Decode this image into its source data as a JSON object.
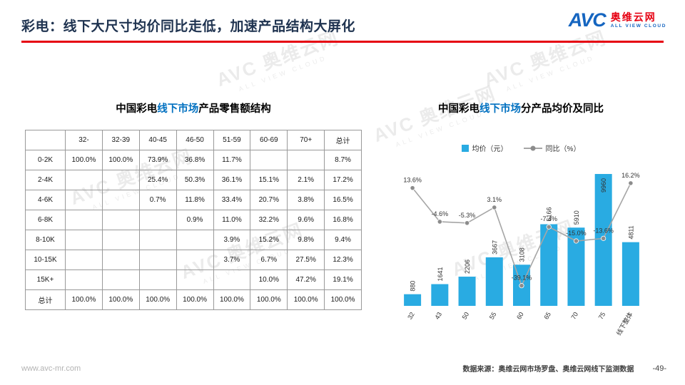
{
  "header": {
    "title": "彩电：线下大尺寸均价同比走低，加速产品结构大屏化",
    "logo": {
      "abbr": "AVC",
      "cn": "奥维云网",
      "en": "ALL VIEW CLOUD"
    }
  },
  "watermark": {
    "abbr": "AVC",
    "cn": "奥维云网",
    "en": "ALL VIEW CLOUD"
  },
  "table_section": {
    "title": {
      "pre": "中国彩电",
      "highlight": "线下市场",
      "post": "产品零售额结构"
    },
    "columns": [
      "",
      "32-",
      "32-39",
      "40-45",
      "46-50",
      "51-59",
      "60-69",
      "70+",
      "总计"
    ],
    "rows": [
      {
        "label": "0-2K",
        "cells": [
          "100.0%",
          "100.0%",
          "73.9%",
          "36.8%",
          "11.7%",
          "",
          "",
          "8.7%"
        ]
      },
      {
        "label": "2-4K",
        "cells": [
          "",
          "",
          "25.4%",
          "50.3%",
          "36.1%",
          "15.1%",
          "2.1%",
          "17.2%"
        ]
      },
      {
        "label": "4-6K",
        "cells": [
          "",
          "",
          "0.7%",
          "11.8%",
          "33.4%",
          "20.7%",
          "3.8%",
          "16.5%"
        ]
      },
      {
        "label": "6-8K",
        "cells": [
          "",
          "",
          "",
          "0.9%",
          "11.0%",
          "32.2%",
          "9.6%",
          "16.8%"
        ]
      },
      {
        "label": "8-10K",
        "cells": [
          "",
          "",
          "",
          "",
          "3.9%",
          "15.2%",
          "9.8%",
          "9.4%"
        ]
      },
      {
        "label": "10-15K",
        "cells": [
          "",
          "",
          "",
          "",
          "3.7%",
          "6.7%",
          "27.5%",
          "12.3%"
        ]
      },
      {
        "label": "15K+",
        "cells": [
          "",
          "",
          "",
          "",
          "",
          "10.0%",
          "47.2%",
          "19.1%"
        ]
      },
      {
        "label": "总计",
        "cells": [
          "100.0%",
          "100.0%",
          "100.0%",
          "100.0%",
          "100.0%",
          "100.0%",
          "100.0%",
          "100.0%"
        ]
      }
    ]
  },
  "chart_section": {
    "title": {
      "pre": "中国彩电",
      "highlight": "线下市场",
      "post": "分产品均价及同比"
    },
    "legend": [
      {
        "label": "均价（元）",
        "color": "#29abe2",
        "type": "bar"
      },
      {
        "label": "同比（%）",
        "color": "#a6a6a6",
        "type": "line"
      }
    ]
  },
  "chart_data": {
    "type": "bar",
    "title": "中国彩电线下市场分产品均价及同比",
    "categories": [
      "32",
      "43",
      "50",
      "55",
      "60",
      "65",
      "70",
      "75",
      "线下整体"
    ],
    "series": [
      {
        "name": "均价（元）",
        "type": "bar",
        "axis": "primary",
        "values": [
          880,
          1641,
          2206,
          3667,
          3108,
          6166,
          5910,
          9960,
          4811
        ],
        "color": "#29abe2"
      },
      {
        "name": "同比（%）",
        "type": "line",
        "axis": "secondary",
        "values": [
          13.6,
          -4.6,
          -5.3,
          3.1,
          -39.1,
          -7.4,
          -15.0,
          -13.6,
          16.2
        ],
        "color": "#a6a6a6"
      }
    ],
    "primary_axis_range": [
      0,
      10500
    ],
    "secondary_axis_range": [
      -50,
      25
    ],
    "gridlines": false,
    "legend_position": "top"
  },
  "footer": {
    "url": "www.avc-mr.com",
    "source": "数据来源：奥维云网市场罗盘、奥维云网线下监测数据",
    "page": "-49-"
  }
}
